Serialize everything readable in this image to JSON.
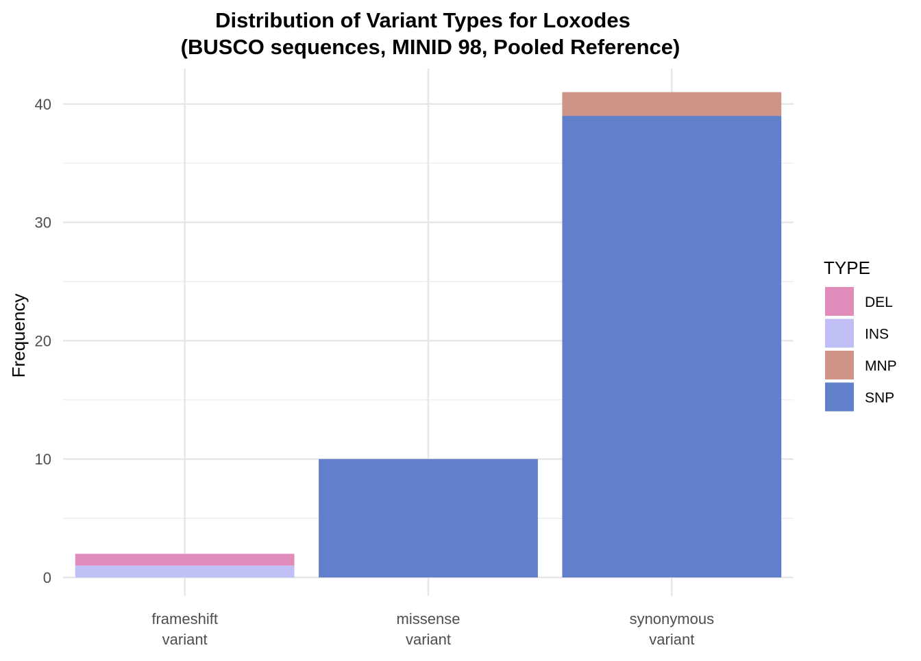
{
  "chart_data": {
    "type": "bar",
    "stacked": true,
    "title": "Distribution of Variant Types for Loxodes",
    "subtitle": "(BUSCO sequences, MINID 98, Pooled Reference)",
    "xlabel": "",
    "ylabel": "Frequency",
    "categories": [
      [
        "frameshift",
        "variant"
      ],
      [
        "missense",
        "variant"
      ],
      [
        "synonymous",
        "variant"
      ]
    ],
    "series": [
      {
        "name": "SNP",
        "color": "#6180c9",
        "values": [
          0,
          10,
          39
        ]
      },
      {
        "name": "MNP",
        "color": "#cf9387",
        "values": [
          0,
          0,
          2
        ]
      },
      {
        "name": "INS",
        "color": "#bfbff5",
        "values": [
          1,
          0,
          0
        ]
      },
      {
        "name": "DEL",
        "color": "#df8cbb",
        "values": [
          1,
          0,
          0
        ]
      }
    ],
    "legend": {
      "title": "TYPE",
      "entries": [
        "DEL",
        "INS",
        "MNP",
        "SNP"
      ],
      "position": "right"
    },
    "ylim": [
      0,
      44
    ],
    "yticks": [
      0,
      10,
      20,
      30,
      40
    ],
    "grid": true
  }
}
